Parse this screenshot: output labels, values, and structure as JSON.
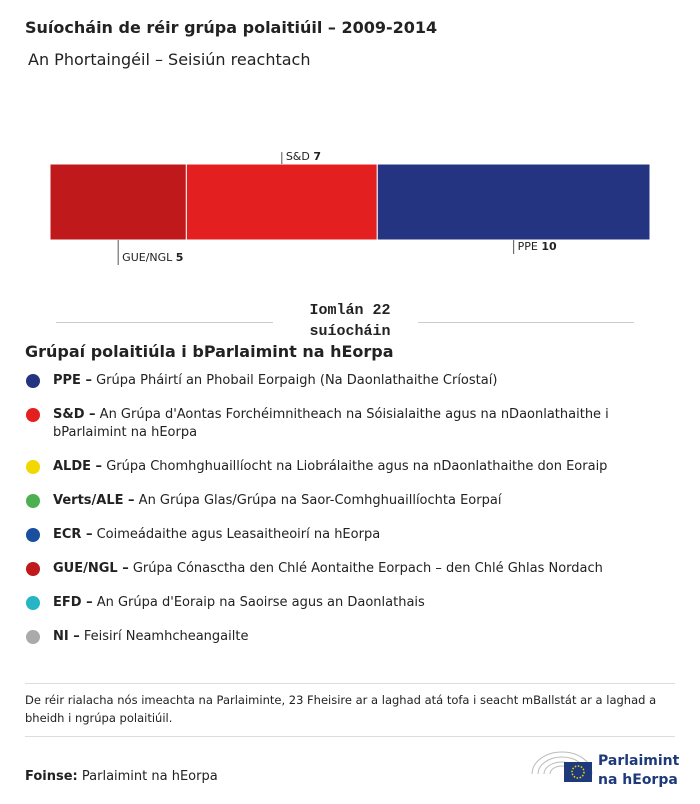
{
  "chart_data": {
    "type": "stacked-bar",
    "title": "Suíocháin de réir grúpa polaitiúil – 2009-2014",
    "subtitle": "An Phortaingéil – Seisiún reachtach",
    "series": [
      {
        "name": "GUE/NGL",
        "color": "#c0191b",
        "values": [
          5
        ]
      },
      {
        "name": "S&D",
        "color": "#e3201f",
        "values": [
          7
        ]
      },
      {
        "name": "PPE",
        "color": "#253480",
        "values": [
          10
        ]
      }
    ],
    "total_label": "Iomlán 22 suíocháin"
  },
  "legend": {
    "title": "Grúpaí polaitiúla i bParlaimint na hEorpa",
    "items": [
      {
        "abbr": "PPE –",
        "text": "Grúpa Pháirtí an Phobail Eorpaigh (Na Daonlathaithe Críostaí)",
        "color": "#253480"
      },
      {
        "abbr": "S&D –",
        "text": "An Grúpa d'Aontas Forchéimnitheach na Sóisialaithe agus na nDaonlathaithe i bParlaimint na hEorpa",
        "color": "#e3201f"
      },
      {
        "abbr": "ALDE –",
        "text": "Grúpa Chomhghuaillíocht na Liobrálaithe agus na nDaonlathaithe don Eoraip",
        "color": "#f0d800"
      },
      {
        "abbr": "Verts/ALE –",
        "text": "An Grúpa Glas/Grúpa na Saor-Comhghuaillíochta Eorpaí",
        "color": "#4caf50"
      },
      {
        "abbr": "ECR –",
        "text": "Coimeádaithe agus Leasaitheoirí na hEorpa",
        "color": "#1a4fa0"
      },
      {
        "abbr": "GUE/NGL –",
        "text": "Grúpa Cónasctha den Chlé Aontaithe Eorpach – den Chlé Ghlas Nordach",
        "color": "#c0191b"
      },
      {
        "abbr": "EFD –",
        "text": "An Grúpa d'Eoraip na Saoirse agus an Daonlathais",
        "color": "#26b5c5"
      },
      {
        "abbr": "NI –",
        "text": "Feisirí Neamhcheangailte",
        "color": "#aaaaaa"
      }
    ]
  },
  "note": "De réir rialacha nós imeachta na Parlaiminte, 23 Fheisire ar a laghad atá tofa i seacht mBallstát ar a laghad a bheidh i ngrúpa polaitiúil.",
  "source": {
    "label": "Foinse:",
    "text": "Parlaimint na hEorpa"
  },
  "logo": {
    "line1": "Parlaimint",
    "line2": "na hEorpa"
  }
}
